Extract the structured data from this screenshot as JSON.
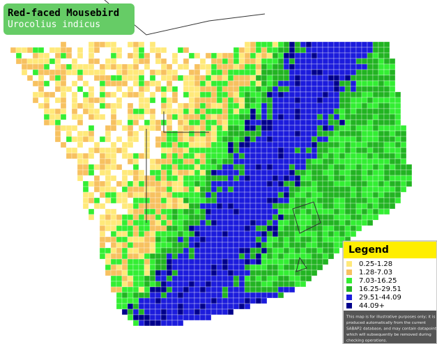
{
  "header": {
    "title": "Red-faced Mousebird",
    "subtitle": "Urocolius indicus"
  },
  "legend": {
    "title": "Legend",
    "items": [
      {
        "label": "0.25-1.28",
        "color": "#ffe97a"
      },
      {
        "label": "1.28-7.03",
        "color": "#f7c160"
      },
      {
        "label": "7.03-16.25",
        "color": "#33ee33"
      },
      {
        "label": "16.25-29.51",
        "color": "#22b422"
      },
      {
        "label": "29.51-44.09",
        "color": "#1c1cdc"
      },
      {
        "label": "44.09+",
        "color": "#00008c"
      }
    ],
    "disclaimer": [
      "This map is for illustrative purposes only; it is",
      "produced automatically from the current",
      "SABAP2 database, and may contain datapoints",
      "which will subsequently be removed during",
      "checking operations."
    ]
  }
}
